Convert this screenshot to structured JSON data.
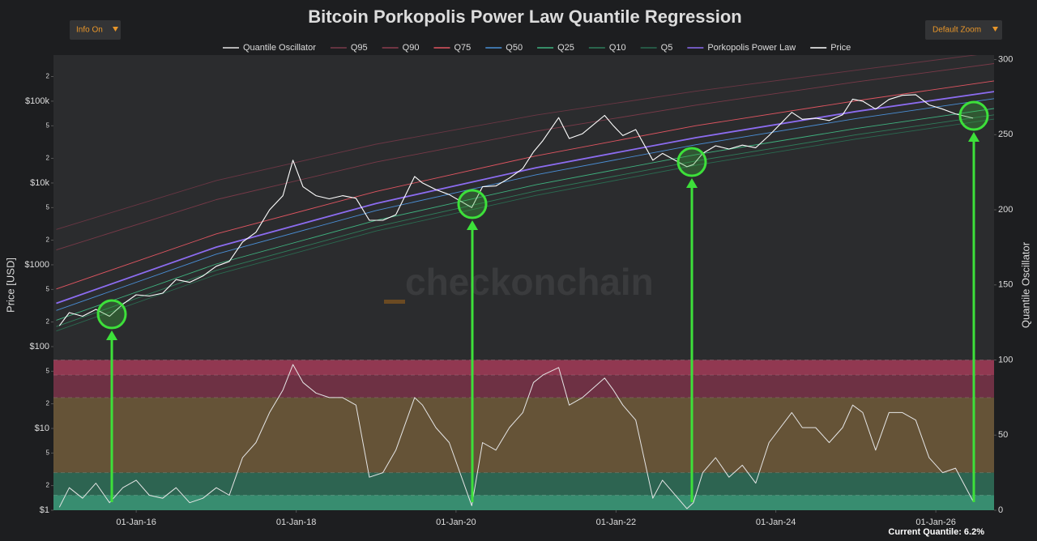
{
  "controls": {
    "info": "Info On",
    "zoom": "Default Zoom"
  },
  "chart_data": {
    "type": "line",
    "title": "Bitcoin Porkopolis Power Law Quantile Regression",
    "ylabel": "Price [USD]",
    "y2label": "Quantile Oscillator",
    "watermark": "checkonchain",
    "footer": "Current Quantile: 6.2%",
    "log_y": true,
    "grid": false,
    "xlim": [
      "2014-12-19",
      "2026-09-24"
    ],
    "xticks": [
      {
        "value": "2016-01-01",
        "label": "01-Jan-16"
      },
      {
        "value": "2018-01-01",
        "label": "01-Jan-18"
      },
      {
        "value": "2020-01-01",
        "label": "01-Jan-20"
      },
      {
        "value": "2022-01-01",
        "label": "01-Jan-22"
      },
      {
        "value": "2024-01-01",
        "label": "01-Jan-24"
      },
      {
        "value": "2026-01-01",
        "label": "01-Jan-26"
      }
    ],
    "ylim": [
      1,
      366000
    ],
    "yticks": [
      {
        "value": 1,
        "label": "$1"
      },
      2,
      5,
      {
        "value": 10,
        "label": "$10"
      },
      {
        "value": 20,
        "label": "2"
      },
      {
        "value": 50,
        "label": "5"
      },
      {
        "value": 100,
        "label": "$100"
      },
      {
        "value": 200,
        "label": "2"
      },
      {
        "value": 500,
        "label": "5"
      },
      {
        "value": 1000,
        "label": "$1000"
      },
      {
        "value": 2000,
        "label": "2"
      },
      {
        "value": 5000,
        "label": "5"
      },
      {
        "value": 10000,
        "label": "$10k"
      },
      {
        "value": 20000,
        "label": "2"
      },
      {
        "value": 50000,
        "label": "5"
      },
      {
        "value": 100000,
        "label": "$100k"
      },
      {
        "value": 200000,
        "label": "2"
      }
    ],
    "y2lim": [
      0,
      303
    ],
    "y2ticks": [
      0,
      50,
      100,
      150,
      200,
      250,
      300
    ],
    "bands": [
      {
        "from": 90,
        "to": 100,
        "color": "#9c3a55"
      },
      {
        "from": 75,
        "to": 90,
        "color": "#763247"
      },
      {
        "from": 25,
        "to": 75,
        "color": "#6b5839"
      },
      {
        "from": 10,
        "to": 25,
        "color": "#2e6a55"
      },
      {
        "from": 0,
        "to": 10,
        "color": "#3a9878"
      }
    ],
    "x": [
      "2015-01-15",
      "2015-03-01",
      "2015-05-01",
      "2015-07-01",
      "2015-09-01",
      "2015-11-01",
      "2016-01-01",
      "2016-03-01",
      "2016-05-01",
      "2016-07-01",
      "2016-09-01",
      "2016-11-01",
      "2017-01-01",
      "2017-03-01",
      "2017-05-01",
      "2017-07-01",
      "2017-09-01",
      "2017-11-01",
      "2017-12-17",
      "2018-02-01",
      "2018-04-01",
      "2018-06-01",
      "2018-08-01",
      "2018-10-01",
      "2018-12-01",
      "2019-02-01",
      "2019-04-01",
      "2019-06-26",
      "2019-08-01",
      "2019-10-01",
      "2019-12-01",
      "2020-03-13",
      "2020-05-01",
      "2020-07-01",
      "2020-09-01",
      "2020-11-01",
      "2020-12-20",
      "2021-02-01",
      "2021-04-14",
      "2021-06-01",
      "2021-08-01",
      "2021-11-10",
      "2021-12-20",
      "2022-02-01",
      "2022-04-01",
      "2022-06-18",
      "2022-08-01",
      "2022-11-21",
      "2022-12-20",
      "2023-02-01",
      "2023-04-01",
      "2023-06-01",
      "2023-08-01",
      "2023-10-01",
      "2023-12-01",
      "2024-03-14",
      "2024-05-01",
      "2024-07-01",
      "2024-09-01",
      "2024-11-01",
      "2024-12-17",
      "2025-02-01",
      "2025-04-01",
      "2025-06-01",
      "2025-08-01",
      "2025-10-01",
      "2025-12-01",
      "2026-02-01",
      "2026-04-01",
      "2026-06-20"
    ],
    "series": [
      {
        "name": "Quantile Oscillator",
        "color": "#e6e6e6",
        "axis": "y2",
        "values": [
          2,
          15,
          8,
          18,
          5,
          15,
          20,
          10,
          8,
          15,
          5,
          8,
          15,
          10,
          35,
          45,
          65,
          80,
          97,
          85,
          78,
          75,
          75,
          70,
          22,
          25,
          40,
          75,
          70,
          55,
          45,
          3,
          45,
          40,
          55,
          65,
          85,
          90,
          95,
          70,
          75,
          88,
          80,
          70,
          60,
          8,
          20,
          1,
          5,
          25,
          35,
          22,
          30,
          18,
          45,
          65,
          55,
          55,
          45,
          55,
          70,
          65,
          40,
          65,
          65,
          60,
          35,
          25,
          28,
          6
        ]
      },
      {
        "name": "Q95",
        "color": "#7a3a4a",
        "x": [
          "2015-01-01",
          "2017-01-01",
          "2019-01-01",
          "2021-01-01",
          "2023-01-01",
          "2025-01-01",
          "2026-09-24"
        ],
        "values": [
          2704,
          10706,
          29813,
          67540,
          132460,
          239200,
          393000
        ]
      },
      {
        "name": "Q90",
        "color": "#8c3d4f",
        "x": [
          "2015-01-01",
          "2017-01-01",
          "2019-01-01",
          "2021-01-01",
          "2023-01-01",
          "2025-01-01",
          "2026-09-24"
        ],
        "values": [
          1521,
          6259,
          18000,
          42980,
          89500,
          171900,
          288200
        ]
      },
      {
        "name": "Q75",
        "color": "#e05561",
        "x": [
          "2015-01-01",
          "2017-01-01",
          "2019-01-01",
          "2021-01-01",
          "2023-01-01",
          "2025-01-01",
          "2026-09-24"
        ],
        "values": [
          507,
          2388,
          7875,
          21490,
          50120,
          100900,
          176850
        ]
      },
      {
        "name": "Q50",
        "color": "#4a8fd6",
        "x": [
          "2015-01-01",
          "2017-01-01",
          "2019-01-01",
          "2021-01-01",
          "2023-01-01",
          "2025-01-01",
          "2026-09-24"
        ],
        "values": [
          277,
          1351,
          4613,
          12590,
          29360,
          61300,
          107400
        ]
      },
      {
        "name": "Q25",
        "color": "#3fb27f",
        "x": [
          "2015-01-01",
          "2017-01-01",
          "2019-01-01",
          "2021-01-01",
          "2023-01-01",
          "2025-01-01",
          "2026-09-24"
        ],
        "values": [
          210,
          1021,
          3488,
          9517,
          22200,
          46350,
          81220
        ]
      },
      {
        "name": "Q10",
        "color": "#2e7d5a",
        "x": [
          "2015-01-01",
          "2017-01-01",
          "2019-01-01",
          "2021-01-01",
          "2023-01-01",
          "2025-01-01",
          "2026-09-24"
        ],
        "values": [
          176,
          856,
          2925,
          7982,
          18620,
          38870,
          68120
        ]
      },
      {
        "name": "Q5",
        "color": "#2a6a50",
        "x": [
          "2015-01-01",
          "2017-01-01",
          "2019-01-01",
          "2021-01-01",
          "2023-01-01",
          "2025-01-01",
          "2026-09-24"
        ],
        "values": [
          155,
          758,
          2588,
          7061,
          16470,
          34390,
          60260
        ]
      },
      {
        "name": "Porkopolis Power Law",
        "color": "#8c6cf0",
        "x": [
          "2015-01-01",
          "2017-01-01",
          "2019-01-01",
          "2021-01-01",
          "2023-01-01",
          "2025-01-01",
          "2026-09-24"
        ],
        "values": [
          338,
          1647,
          5625,
          15350,
          35800,
          74750,
          131000
        ]
      },
      {
        "name": "Price",
        "color": "#ffffff",
        "values": [
          180,
          260,
          235,
          285,
          235,
          330,
          430,
          415,
          450,
          660,
          610,
          730,
          960,
          1100,
          1900,
          2500,
          4700,
          7000,
          19000,
          9000,
          7000,
          6400,
          7000,
          6500,
          3500,
          3500,
          4100,
          12000,
          10000,
          8300,
          7200,
          5000,
          9000,
          9200,
          11500,
          15000,
          24000,
          33000,
          63000,
          35000,
          40000,
          67000,
          50000,
          38000,
          45000,
          19000,
          23000,
          15800,
          16800,
          23000,
          28500,
          26000,
          29000,
          27000,
          38000,
          73000,
          60000,
          62000,
          58000,
          68000,
          106000,
          100000,
          80000,
          105000,
          118000,
          120000,
          90000,
          80000,
          70000,
          62000
        ]
      }
    ]
  }
}
